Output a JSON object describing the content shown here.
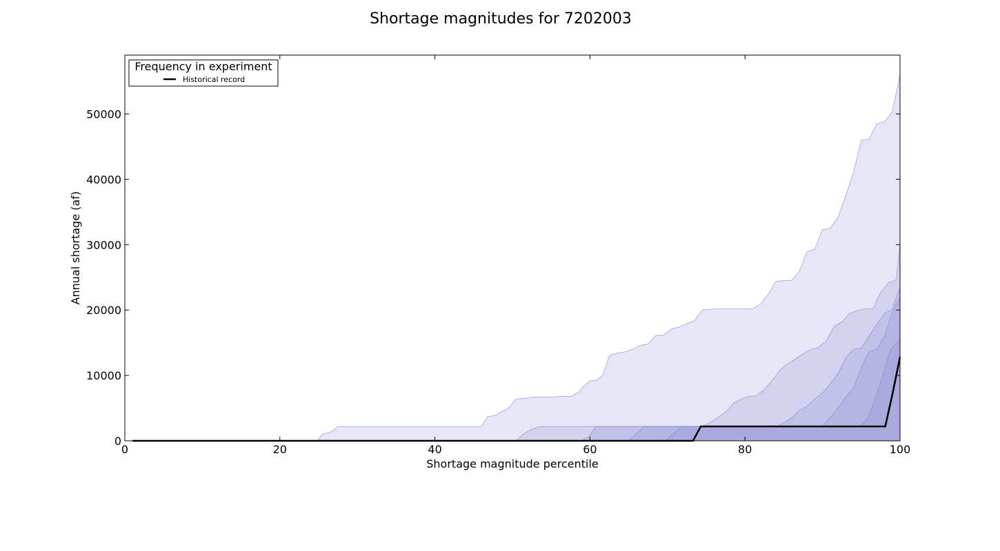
{
  "chart_data": {
    "type": "area",
    "title": "Shortage magnitudes for 7202003",
    "xlabel": "Shortage magnitude percentile",
    "ylabel": "Annual shortage (af)",
    "xlim": [
      0,
      100
    ],
    "ylim": [
      0,
      59000
    ],
    "xticks": [
      0,
      20,
      40,
      60,
      80,
      100
    ],
    "yticks": [
      0,
      10000,
      20000,
      30000,
      40000,
      50000
    ],
    "legend": {
      "title": "Frequency in experiment",
      "placement": "top-left",
      "entries": [
        {
          "label": "Historical record",
          "color": "#000000"
        }
      ]
    },
    "band_color": "#8080d0",
    "bands": [
      {
        "points": [
          [
            1,
            0
          ],
          [
            24.8,
            0
          ],
          [
            25.5,
            1000
          ],
          [
            26.5,
            1300
          ],
          [
            27.5,
            2200
          ],
          [
            46,
            2200
          ],
          [
            46.8,
            3700
          ],
          [
            47.8,
            3900
          ],
          [
            48.5,
            4400
          ],
          [
            49.5,
            5000
          ],
          [
            50.5,
            6400
          ],
          [
            51.5,
            6500
          ],
          [
            52.7,
            6700
          ],
          [
            55,
            6700
          ],
          [
            56.5,
            6800
          ],
          [
            57.5,
            6800
          ],
          [
            58.5,
            7400
          ],
          [
            59.2,
            8300
          ],
          [
            60,
            9200
          ],
          [
            60.8,
            9200
          ],
          [
            61.7,
            10100
          ],
          [
            62.5,
            13000
          ],
          [
            63.5,
            13400
          ],
          [
            64.5,
            13600
          ],
          [
            65.5,
            14000
          ],
          [
            66.5,
            14600
          ],
          [
            67.5,
            14800
          ],
          [
            68.5,
            16100
          ],
          [
            69.5,
            16200
          ],
          [
            70.5,
            17100
          ],
          [
            71.5,
            17400
          ],
          [
            72.5,
            17900
          ],
          [
            73.5,
            18400
          ],
          [
            74.5,
            20000
          ],
          [
            75.5,
            20100
          ],
          [
            76.5,
            20200
          ],
          [
            80,
            20200
          ],
          [
            81,
            20200
          ],
          [
            82,
            20900
          ],
          [
            83,
            22400
          ],
          [
            84,
            24400
          ],
          [
            85,
            24500
          ],
          [
            86,
            24500
          ],
          [
            87,
            25900
          ],
          [
            88,
            28900
          ],
          [
            89,
            29300
          ],
          [
            90,
            32300
          ],
          [
            91,
            32500
          ],
          [
            92,
            34200
          ],
          [
            93,
            37500
          ],
          [
            94,
            41000
          ],
          [
            95,
            46000
          ],
          [
            96,
            46100
          ],
          [
            97,
            48500
          ],
          [
            98,
            48800
          ],
          [
            99,
            50300
          ],
          [
            100,
            56000
          ],
          [
            100.5,
            59000
          ]
        ]
      },
      {
        "points": [
          [
            1,
            0
          ],
          [
            50.5,
            0
          ],
          [
            51.5,
            1100
          ],
          [
            52.5,
            1800
          ],
          [
            53.5,
            2200
          ],
          [
            74.5,
            2200
          ],
          [
            75.5,
            2800
          ],
          [
            76.5,
            3600
          ],
          [
            77.5,
            4400
          ],
          [
            78.5,
            5700
          ],
          [
            79.5,
            6400
          ],
          [
            80.5,
            6800
          ],
          [
            81.5,
            6900
          ],
          [
            82.5,
            7900
          ],
          [
            83.5,
            9200
          ],
          [
            84.5,
            10800
          ],
          [
            85.5,
            11800
          ],
          [
            86.5,
            12500
          ],
          [
            87.5,
            13300
          ],
          [
            88.5,
            14000
          ],
          [
            89.5,
            14300
          ],
          [
            90.5,
            15300
          ],
          [
            91.5,
            17500
          ],
          [
            92.5,
            18200
          ],
          [
            93.5,
            19500
          ],
          [
            94.5,
            19900
          ],
          [
            95.5,
            20200
          ],
          [
            96.5,
            20200
          ],
          [
            97.5,
            22700
          ],
          [
            98.5,
            24200
          ],
          [
            99.5,
            24600
          ],
          [
            100,
            30000
          ],
          [
            100.5,
            39800
          ]
        ]
      },
      {
        "points": [
          [
            1,
            0
          ],
          [
            58.8,
            0
          ],
          [
            59.8,
            600
          ],
          [
            60.8,
            2200
          ],
          [
            84,
            2200
          ],
          [
            85,
            2700
          ],
          [
            86,
            3500
          ],
          [
            87,
            4600
          ],
          [
            88,
            5300
          ],
          [
            89,
            6400
          ],
          [
            90,
            7300
          ],
          [
            91,
            8700
          ],
          [
            92,
            10300
          ],
          [
            93,
            12700
          ],
          [
            94,
            14000
          ],
          [
            95,
            14200
          ],
          [
            96,
            16000
          ],
          [
            97,
            17800
          ],
          [
            98,
            19500
          ],
          [
            99,
            20100
          ],
          [
            100,
            23500
          ],
          [
            100.5,
            25400
          ]
        ]
      },
      {
        "points": [
          [
            1,
            0
          ],
          [
            65,
            0
          ],
          [
            66,
            1100
          ],
          [
            67,
            2200
          ],
          [
            90,
            2200
          ],
          [
            91,
            3600
          ],
          [
            92,
            5000
          ],
          [
            93,
            6700
          ],
          [
            94,
            8000
          ],
          [
            95,
            11200
          ],
          [
            96,
            13600
          ],
          [
            97,
            14000
          ],
          [
            98,
            16000
          ],
          [
            99,
            19600
          ],
          [
            100,
            22000
          ],
          [
            100.5,
            23500
          ]
        ]
      },
      {
        "points": [
          [
            1,
            0
          ],
          [
            69.8,
            0
          ],
          [
            70.8,
            1100
          ],
          [
            71.8,
            2200
          ],
          [
            94.8,
            2200
          ],
          [
            95.8,
            3400
          ],
          [
            96.8,
            6500
          ],
          [
            97.8,
            10200
          ],
          [
            98.8,
            14000
          ],
          [
            100,
            15500
          ],
          [
            100.5,
            16200
          ]
        ]
      }
    ],
    "series": [
      {
        "name": "Historical record",
        "color": "#000000",
        "x": [
          1,
          73.3,
          74.3,
          98.1,
          99,
          100.5
        ],
        "y": [
          0,
          0,
          2200,
          2200,
          7000,
          12800
        ]
      }
    ]
  }
}
